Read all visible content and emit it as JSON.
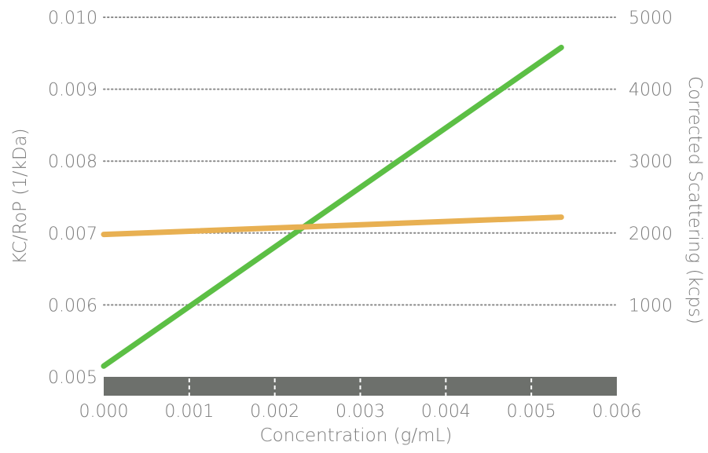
{
  "chart_data": {
    "type": "line",
    "xlabel": "Concentration (g/mL)",
    "ylabel_left": "KC/RoP (1/kDa)",
    "ylabel_right": "Corrected Scattering (kcps)",
    "x_range": [
      0.0,
      0.006
    ],
    "y_left_range": [
      0.005,
      0.01
    ],
    "y_right_range": [
      0,
      5000
    ],
    "x_ticks": [
      "0.000",
      "0.001",
      "0.002",
      "0.003",
      "0.004",
      "0.005",
      "0.006"
    ],
    "y_left_ticks": [
      "0.005",
      "0.006",
      "0.007",
      "0.008",
      "0.009",
      "0.010"
    ],
    "y_right_ticks": [
      "1000",
      "2000",
      "3000",
      "4000",
      "5000"
    ],
    "y_right_tick_values": [
      1000,
      2000,
      3000,
      4000,
      5000
    ],
    "grid": "dotted horizontal",
    "series": [
      {
        "axis": "right",
        "color": "#5cbf45",
        "points": [
          {
            "x": 0.0,
            "y": 150
          },
          {
            "x": 0.00535,
            "y": 4580
          }
        ]
      },
      {
        "axis": "left",
        "color": "#e8b052",
        "points": [
          {
            "x": 0.0,
            "y": 0.00698
          },
          {
            "x": 0.00535,
            "y": 0.00722
          }
        ]
      }
    ],
    "x_axis_bar_color": "#6d706c"
  }
}
